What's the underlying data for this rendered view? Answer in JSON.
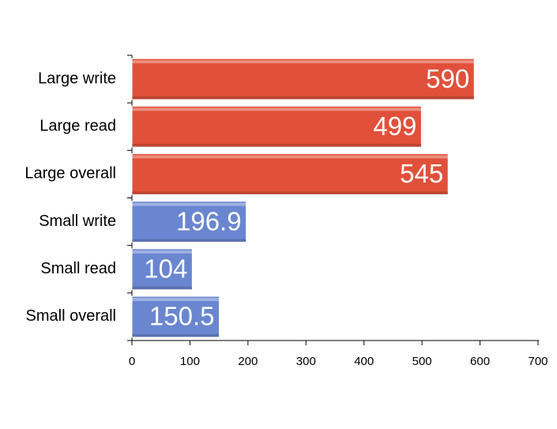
{
  "chart_data": {
    "type": "hbar",
    "categories": [
      "Large write",
      "Large read",
      "Large overall",
      "Small write",
      "Small read",
      "Small overall"
    ],
    "values": [
      590,
      499,
      545,
      196.9,
      104,
      150.5
    ],
    "colors": [
      "#e0503a",
      "#e0503a",
      "#e0503a",
      "#6a86d0",
      "#6a86d0",
      "#6a86d0"
    ],
    "xlim": [
      0,
      700
    ],
    "xticks": [
      0,
      100,
      200,
      300,
      400,
      500,
      600,
      700
    ],
    "data_labels": true
  }
}
